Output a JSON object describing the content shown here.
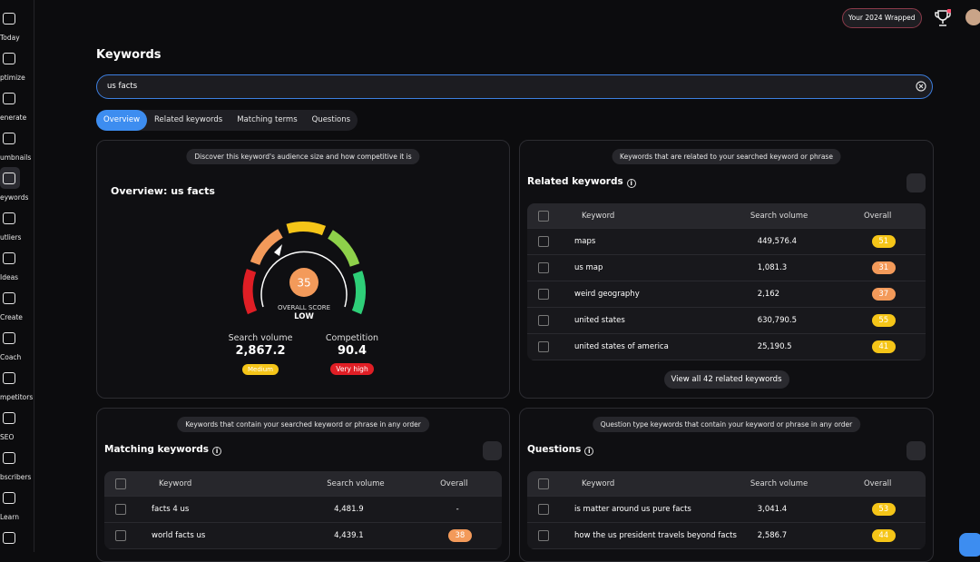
{
  "sidebar": {
    "items": [
      "Today",
      "ptimize",
      "enerate",
      "umbnails",
      "eywords",
      "utliers",
      "Ideas",
      "Create",
      "Coach",
      "mpetitors",
      "SEO",
      "bscribers",
      "Learn"
    ],
    "active": 4
  },
  "header": {
    "wrapped": "Your 2024 Wrapped"
  },
  "page": {
    "title": "Keywords"
  },
  "search": {
    "query": "us facts"
  },
  "tabs": {
    "items": [
      "Overview",
      "Related keywords",
      "Matching terms",
      "Questions"
    ],
    "active": 0
  },
  "overview": {
    "hint": "Discover this keyword's audience size and how competitive it is",
    "title": "Overview: us facts",
    "score": 35,
    "score_label": "OVERALL SCORE",
    "score_level": "LOW",
    "search_volume": {
      "label": "Search volume",
      "value": "2,867.2",
      "badge": "Medium"
    },
    "competition": {
      "label": "Competition",
      "value": "90.4",
      "badge": "Very high"
    }
  },
  "related": {
    "hint": "Keywords that are related to your searched keyword or phrase",
    "title": "Related keywords",
    "columns": [
      "Keyword",
      "Search volume",
      "Overall"
    ],
    "rows": [
      {
        "keyword": "maps",
        "volume": "449,576.4",
        "overall": "51",
        "color": "#f5c518"
      },
      {
        "keyword": "us map",
        "volume": "1,081.3",
        "overall": "31",
        "color": "#f39a5a"
      },
      {
        "keyword": "weird geography",
        "volume": "2,162",
        "overall": "37",
        "color": "#f39a5a"
      },
      {
        "keyword": "united states",
        "volume": "630,790.5",
        "overall": "55",
        "color": "#f5c518"
      },
      {
        "keyword": "united states of america",
        "volume": "25,190.5",
        "overall": "41",
        "color": "#f5c518"
      }
    ],
    "button": "View all 42 related keywords"
  },
  "matching": {
    "hint": "Keywords that contain your searched keyword or phrase in any order",
    "title": "Matching keywords",
    "columns": [
      "Keyword",
      "Search volume",
      "Overall"
    ],
    "rows": [
      {
        "keyword": "facts 4 us",
        "volume": "4,481.9",
        "overall": "-",
        "color": null
      },
      {
        "keyword": "world facts us",
        "volume": "4,439.1",
        "overall": "38",
        "color": "#f39a5a"
      }
    ]
  },
  "questions": {
    "hint": "Question type keywords that contain your keyword or phrase in any order",
    "title": "Questions",
    "columns": [
      "Keyword",
      "Search volume",
      "Overall"
    ],
    "rows": [
      {
        "keyword": "is matter around us pure facts",
        "volume": "3,041.4",
        "overall": "53",
        "color": "#f5c518"
      },
      {
        "keyword": "how the us president travels beyond facts",
        "volume": "2,586.7",
        "overall": "44",
        "color": "#f5c518"
      }
    ]
  }
}
